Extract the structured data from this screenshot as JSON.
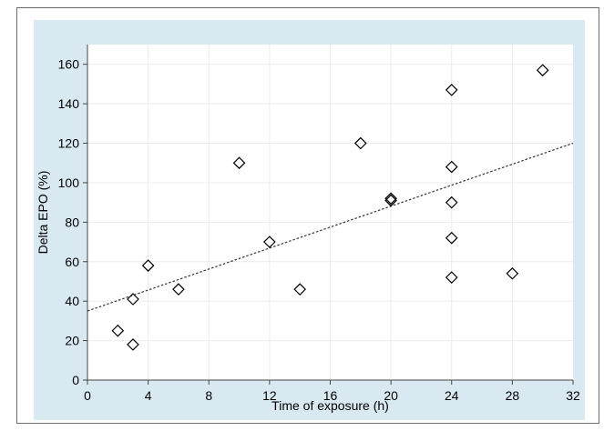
{
  "chart_data": {
    "type": "scatter",
    "title": "",
    "xlabel": "Time of exposure (h)",
    "ylabel": "Delta EPO (%)",
    "xlim": [
      0,
      32
    ],
    "ylim": [
      0,
      170
    ],
    "x_ticks": [
      0,
      4,
      8,
      12,
      16,
      20,
      24,
      28,
      32
    ],
    "y_ticks": [
      0,
      20,
      40,
      60,
      80,
      100,
      120,
      140,
      160
    ],
    "grid": true,
    "marker": "diamond-open",
    "series": [
      {
        "points": [
          {
            "x": 2,
            "y": 25
          },
          {
            "x": 3,
            "y": 18
          },
          {
            "x": 3,
            "y": 41
          },
          {
            "x": 4,
            "y": 58
          },
          {
            "x": 6,
            "y": 46
          },
          {
            "x": 10,
            "y": 110
          },
          {
            "x": 12,
            "y": 70
          },
          {
            "x": 14,
            "y": 46
          },
          {
            "x": 18,
            "y": 120
          },
          {
            "x": 20,
            "y": 91
          },
          {
            "x": 20,
            "y": 92
          },
          {
            "x": 24,
            "y": 147
          },
          {
            "x": 24,
            "y": 108
          },
          {
            "x": 24,
            "y": 90
          },
          {
            "x": 24,
            "y": 72
          },
          {
            "x": 24,
            "y": 52
          },
          {
            "x": 28,
            "y": 54
          },
          {
            "x": 30,
            "y": 157
          }
        ]
      }
    ],
    "trendline": {
      "style": "dotted",
      "from": {
        "x": 0,
        "y": 35
      },
      "to": {
        "x": 32,
        "y": 120
      }
    },
    "colors": {
      "plot_background": "#d9e9f1",
      "grid": "#ececec",
      "marker": "#000000",
      "trendline": "#333333"
    }
  }
}
